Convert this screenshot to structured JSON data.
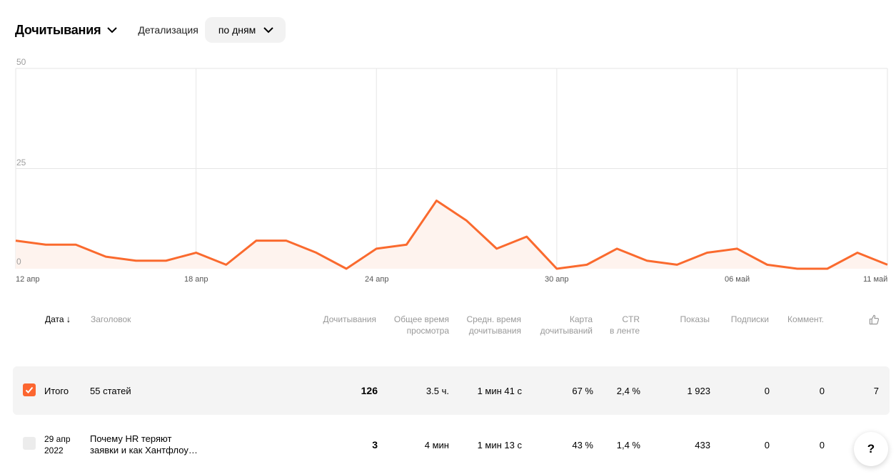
{
  "toolbar": {
    "metric_title": "Дочитывания",
    "detail_label": "Детализация",
    "period_value": "по дням"
  },
  "chart_data": {
    "type": "area",
    "y_ticks": [
      "50",
      "25",
      "0"
    ],
    "ylim": [
      0,
      50
    ],
    "x_tick_labels": [
      "12 апр",
      "18 апр",
      "24 апр",
      "30 апр",
      "06 май",
      "11 май"
    ],
    "x": [
      "12 апр",
      "13 апр",
      "14 апр",
      "15 апр",
      "16 апр",
      "17 апр",
      "18 апр",
      "19 апр",
      "20 апр",
      "21 апр",
      "22 апр",
      "23 апр",
      "24 апр",
      "25 апр",
      "26 апр",
      "27 апр",
      "28 апр",
      "29 апр",
      "30 апр",
      "01 май",
      "02 май",
      "03 май",
      "04 май",
      "05 май",
      "06 май",
      "07 май",
      "08 май",
      "09 май",
      "10 май",
      "11 май"
    ],
    "series": [
      {
        "values": [
          7,
          6,
          6,
          3,
          2,
          2,
          4,
          1,
          7,
          7,
          4,
          0,
          5,
          6,
          17,
          12,
          5,
          8,
          0,
          1,
          5,
          2,
          1,
          4,
          5,
          1,
          0,
          0,
          4,
          1
        ]
      }
    ],
    "grid": true,
    "colors": {
      "line": "#fa6a2e",
      "fill": "#fef3ee",
      "grid": "#e6e6e6"
    }
  },
  "table": {
    "headers": {
      "date": "Дата",
      "title": "Заголовок",
      "reads": "Дочитывания",
      "total_time": [
        "Общее время",
        "просмотра"
      ],
      "avg_time": [
        "Средн. время",
        "дочитывания"
      ],
      "read_map": [
        "Карта",
        "дочитываний"
      ],
      "ctr": [
        "CTR",
        "в ленте"
      ],
      "impressions": "Показы",
      "subscriptions": "Подписки",
      "comments": "Коммент."
    },
    "total": {
      "label": "Итого",
      "title": "55 статей",
      "reads": "126",
      "total_time": "3.5 ч.",
      "avg_time": "1 мин 41 с",
      "read_map": "67 %",
      "ctr": "2,4 %",
      "impressions": "1 923",
      "subscriptions": "0",
      "comments": "0",
      "likes": "7"
    },
    "rows": [
      {
        "date": [
          "29 апр",
          "2022"
        ],
        "title": [
          "Почему HR теряют",
          "заявки и как Хантфлоу…"
        ],
        "reads": "3",
        "total_time": "4 мин",
        "avg_time": "1 мин 13 с",
        "read_map": "43 %",
        "ctr": "1,4 %",
        "impressions": "433",
        "subscriptions": "0",
        "comments": "0"
      }
    ]
  },
  "help_label": "?",
  "icons": {
    "likes": "thumbs-up-icon",
    "sort": "arrow-down-icon",
    "dropdown": "chevron-down-icon",
    "check": "check-icon"
  }
}
